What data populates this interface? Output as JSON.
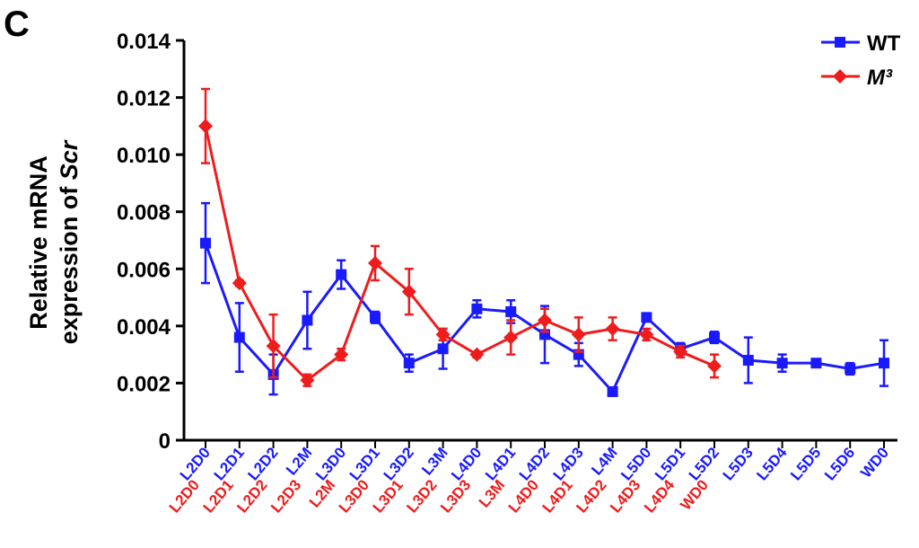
{
  "panel_label": "C",
  "chart_data": {
    "type": "line",
    "ylabel_lines": [
      "Relative mRNA",
      "expression of ",
      "Scr"
    ],
    "ylim": [
      0,
      0.014
    ],
    "yticks": [
      0,
      0.002,
      0.004,
      0.006,
      0.008,
      {
        "value": 0.01,
        "label": "0.010"
      },
      0.012,
      0.014
    ],
    "series": [
      {
        "name": "WT",
        "color": "#1a1aff",
        "categories": [
          "L2D0",
          "L2D1",
          "L2D2",
          "L2M",
          "L3D0",
          "L3D1",
          "L3D2",
          "L3M",
          "L4D0",
          "L4D1",
          "L4D2",
          "L4D3",
          "L4M",
          "L5D0",
          "L5D1",
          "L5D2",
          "L5D3",
          "L5D4",
          "L5D5",
          "L5D6",
          "WD0"
        ],
        "values": [
          0.0069,
          0.0036,
          0.0023,
          0.0042,
          0.0058,
          0.0043,
          0.0027,
          0.0032,
          0.0046,
          0.0045,
          0.0037,
          0.003,
          0.0017,
          0.0043,
          0.0032,
          0.0036,
          0.0028,
          0.0027,
          0.0027,
          0.0025,
          0.0027
        ],
        "errors": [
          0.0014,
          0.0012,
          0.0007,
          0.001,
          0.0005,
          0.0002,
          0.0003,
          0.0007,
          0.0003,
          0.0004,
          0.001,
          0.0004,
          0.0001,
          0.0001,
          0.0002,
          0.0002,
          0.0008,
          0.0003,
          0.0001,
          0.0002,
          0.0008
        ]
      },
      {
        "name": "M³",
        "color": "#ee1c1c",
        "categories": [
          "L2D0",
          "L2D1",
          "L2D2",
          "L2D3",
          "L2M",
          "L3D0",
          "L3D1",
          "L3D2",
          "L3D3",
          "L3M",
          "L4D0",
          "L4D1",
          "L4D2",
          "L4D3",
          "L4D4",
          "WD0"
        ],
        "values": [
          0.011,
          0.0055,
          0.0033,
          0.0021,
          0.003,
          0.0062,
          0.0052,
          0.0037,
          0.003,
          0.0036,
          0.0042,
          0.0037,
          0.0039,
          0.0037,
          0.0031,
          0.0026
        ],
        "errors": [
          0.0013,
          0.0001,
          0.0011,
          0.0002,
          0.0002,
          0.0006,
          0.0008,
          0.0002,
          0.0001,
          0.0006,
          0.0004,
          0.0006,
          0.0004,
          0.0002,
          0.0002,
          0.0004
        ]
      }
    ]
  }
}
